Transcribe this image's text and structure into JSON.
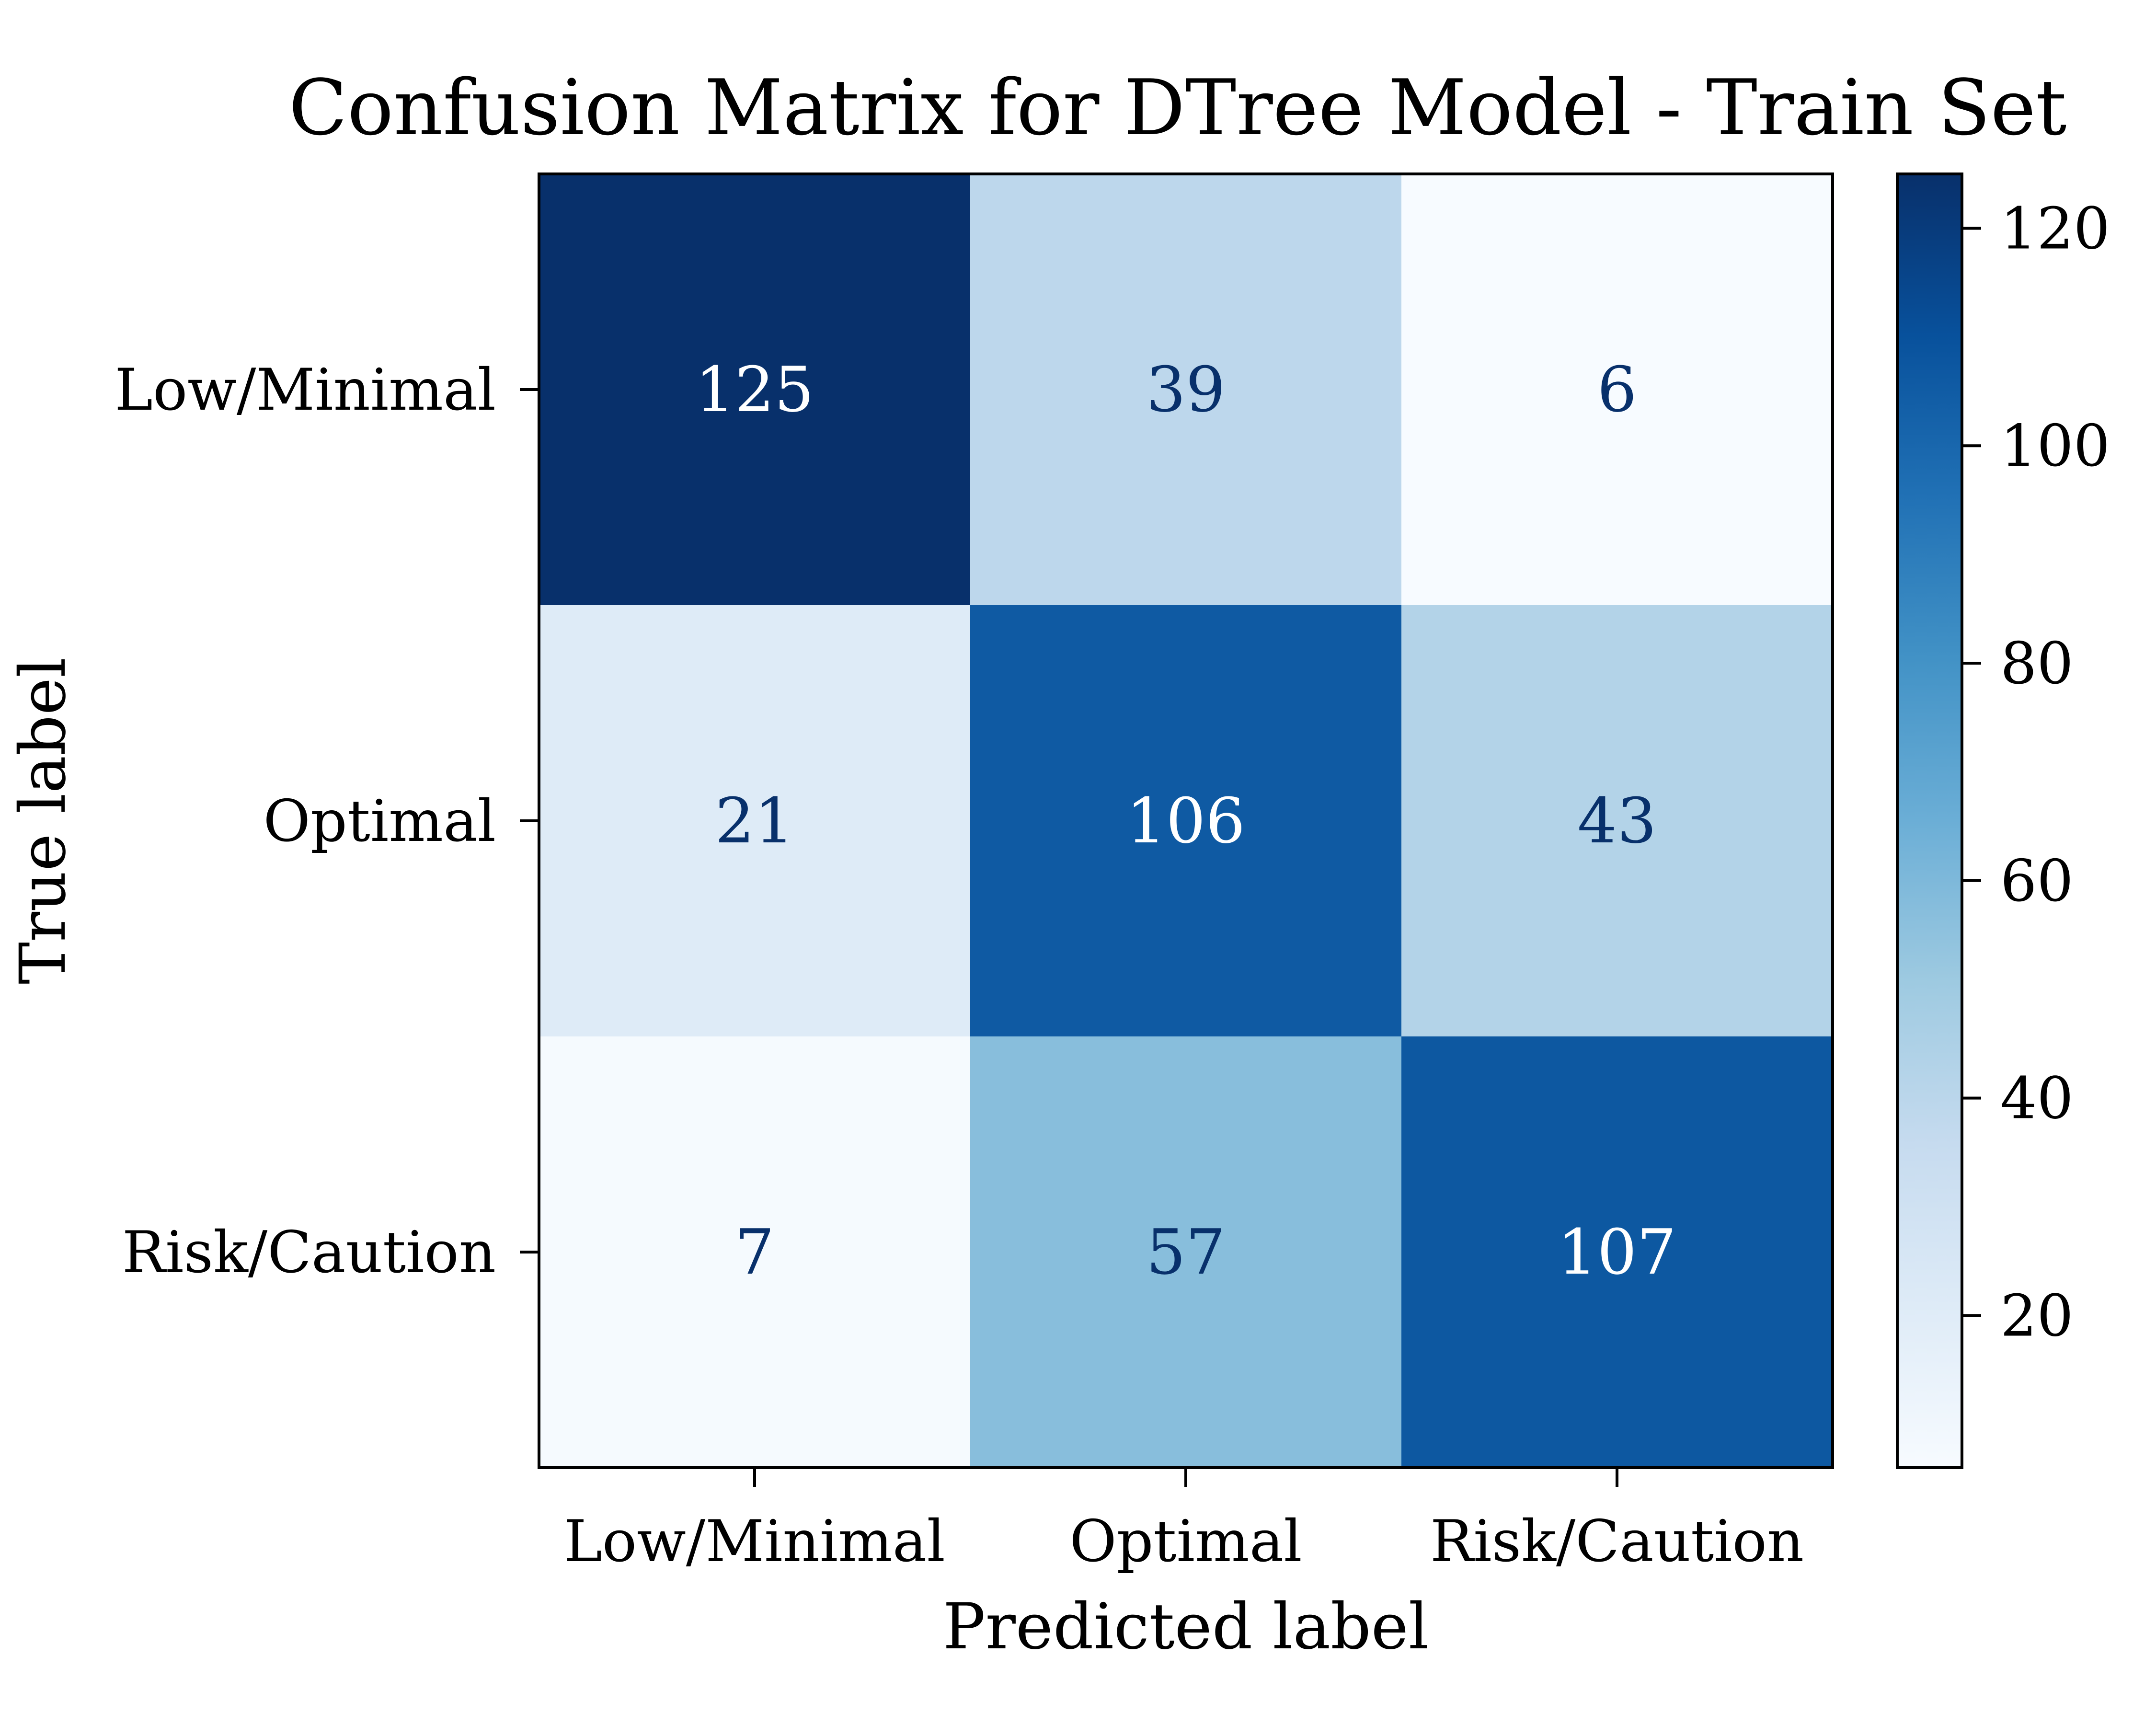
{
  "chart_data": {
    "type": "heatmap",
    "title": "Confusion Matrix for DTree Model - Train Set",
    "xlabel": "Predicted label",
    "ylabel": "True label",
    "x_categories": [
      "Low/Minimal",
      "Optimal",
      "Risk/Caution"
    ],
    "y_categories": [
      "Low/Minimal",
      "Optimal",
      "Risk/Caution"
    ],
    "values": [
      [
        125,
        39,
        6
      ],
      [
        21,
        106,
        43
      ],
      [
        7,
        57,
        107
      ]
    ],
    "value_labels": [
      [
        "125",
        "39",
        "6"
      ],
      [
        "21",
        "106",
        "43"
      ],
      [
        "7",
        "57",
        "107"
      ]
    ],
    "colormap": "Blues",
    "colorbar": {
      "range": [
        6,
        125
      ],
      "ticks": [
        20,
        40,
        60,
        80,
        100,
        120
      ],
      "tick_labels": [
        "20",
        "40",
        "60",
        "80",
        "100",
        "120"
      ]
    },
    "text_colors": {
      "on_dark": "#ffffff",
      "on_light": "#08306b"
    },
    "grid": false
  }
}
